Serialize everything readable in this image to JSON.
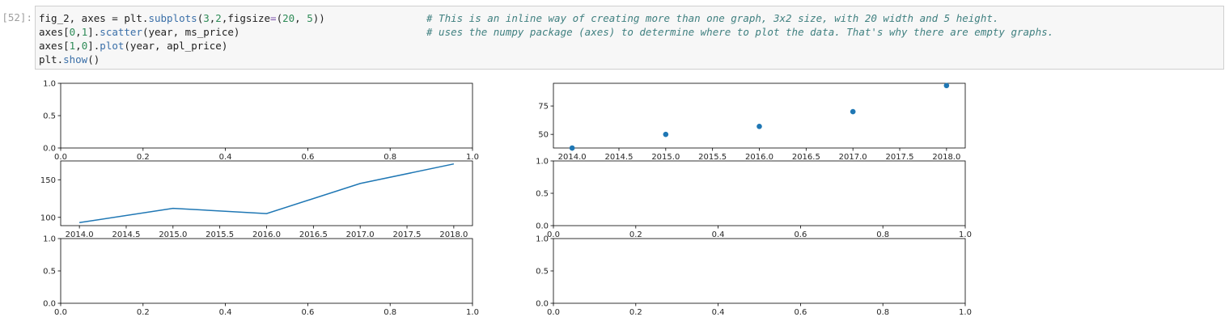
{
  "cell": {
    "prompt": "[52]:",
    "code": {
      "line1": {
        "a": "fig_2, axes = plt.",
        "fn": "subplots",
        "b": "(",
        "n1": "3",
        "c": ",",
        "n2": "2",
        "d": ",figsize",
        "eq": "=",
        "e": "(",
        "n3": "20",
        "f": ", ",
        "n4": "5",
        "g": "))",
        "comment": "# This is an inline way of creating more than one graph, 3x2 size, with 20 width and 5 height."
      },
      "line2": {
        "a": "axes[",
        "n1": "0",
        "b": ",",
        "n2": "1",
        "c": "].",
        "fn": "scatter",
        "d": "(year, ms_price)",
        "comment": "# uses the numpy package (axes) to determine where to plot the data. That's why there are empty graphs."
      },
      "line3": {
        "a": "axes[",
        "n1": "1",
        "b": ",",
        "n2": "0",
        "c": "].",
        "fn": "plot",
        "d": "(year, apl_price)"
      },
      "line4": {
        "a": "plt.",
        "fn": "show",
        "b": "()"
      }
    },
    "colors": {
      "code_bg": "#f7f7f7",
      "border": "#cfcfcf",
      "series": "#1f77b4"
    }
  },
  "chart_data": [
    {
      "type": "scatter",
      "subplot": "row 1, col 2",
      "x": [
        2014.0,
        2015.0,
        2016.0,
        2017.0,
        2018.0
      ],
      "y": [
        38,
        50,
        57,
        70,
        93
      ],
      "xlim": [
        2013.8,
        2018.2
      ],
      "ylim": [
        38,
        95
      ],
      "xticks": [
        "2014.0",
        "2014.5",
        "2015.0",
        "2015.5",
        "2016.0",
        "2016.5",
        "2017.0",
        "2017.5",
        "2018.0"
      ],
      "yticks": [
        "50",
        "75"
      ]
    },
    {
      "type": "line",
      "subplot": "row 2, col 1",
      "x": [
        2014.0,
        2015.0,
        2016.0,
        2017.0,
        2018.0
      ],
      "y": [
        93,
        112,
        105,
        145,
        171
      ],
      "xlim": [
        2013.8,
        2018.2
      ],
      "ylim": [
        89,
        175
      ],
      "xticks": [
        "2014.0",
        "2014.5",
        "2015.0",
        "2015.5",
        "2016.0",
        "2016.5",
        "2017.0",
        "2017.5",
        "2018.0"
      ],
      "yticks": [
        "100",
        "150"
      ]
    },
    {
      "type": "empty",
      "subplot": "row 1, col 1",
      "xlim": [
        0,
        1
      ],
      "ylim": [
        0,
        1
      ],
      "xticks": [
        "0.0",
        "0.2",
        "0.4",
        "0.6",
        "0.8",
        "1.0"
      ],
      "yticks": [
        "0.0",
        "0.5",
        "1.0"
      ]
    },
    {
      "type": "empty",
      "subplot": "row 2, col 2",
      "xlim": [
        0,
        1
      ],
      "ylim": [
        0,
        1
      ],
      "xticks": [
        "0.0",
        "0.2",
        "0.4",
        "0.6",
        "0.8",
        "1.0"
      ],
      "yticks": [
        "0.0",
        "0.5",
        "1.0"
      ]
    },
    {
      "type": "empty",
      "subplot": "row 3, col 1",
      "xlim": [
        0,
        1
      ],
      "ylim": [
        0,
        1
      ],
      "xticks": [
        "0.0",
        "0.2",
        "0.4",
        "0.6",
        "0.8",
        "1.0"
      ],
      "yticks": [
        "0.0",
        "0.5",
        "1.0"
      ]
    },
    {
      "type": "empty",
      "subplot": "row 3, col 2",
      "xlim": [
        0,
        1
      ],
      "ylim": [
        0,
        1
      ],
      "xticks": [
        "0.0",
        "0.2",
        "0.4",
        "0.6",
        "0.8",
        "1.0"
      ],
      "yticks": [
        "0.0",
        "0.5",
        "1.0"
      ]
    }
  ]
}
